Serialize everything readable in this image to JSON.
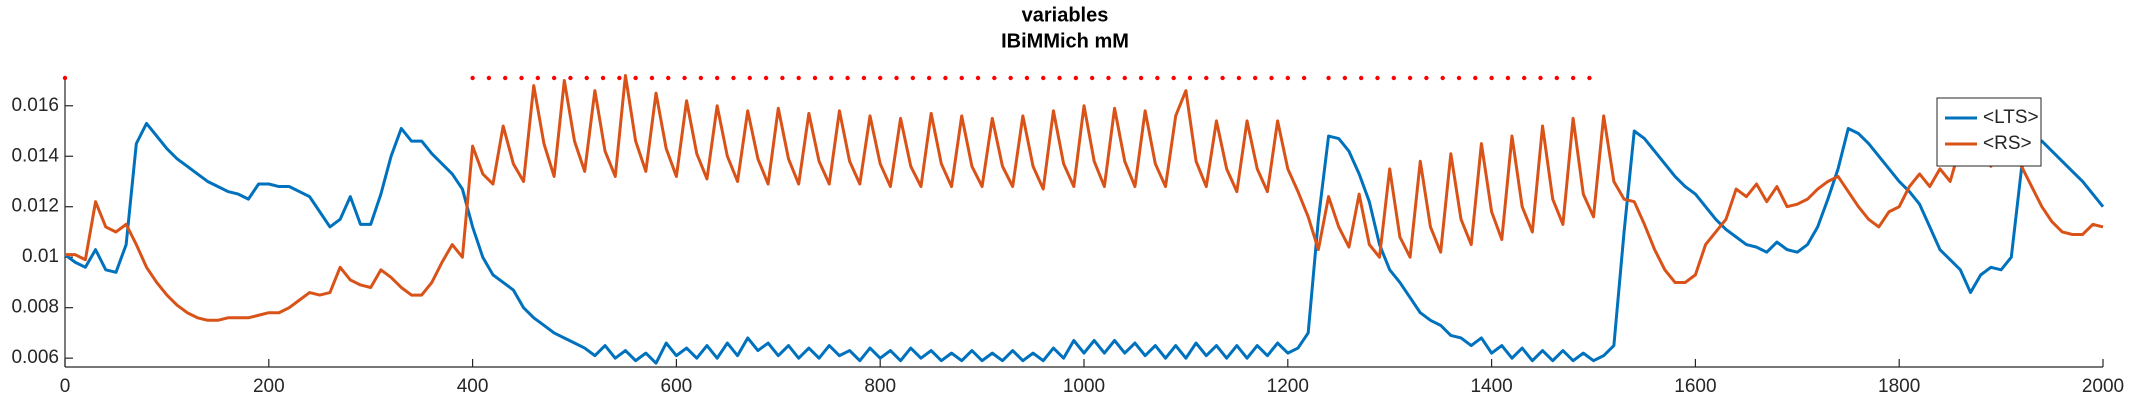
{
  "chart_data": {
    "type": "line",
    "title": "variables",
    "subtitle": "IBiMMich mM",
    "xlim": [
      0,
      2000
    ],
    "xticks": [
      0,
      200,
      400,
      600,
      800,
      1000,
      1200,
      1400,
      1600,
      1800,
      2000
    ],
    "ylim": [
      0.00565,
      0.0171
    ],
    "yticks": [
      0.006,
      0.008,
      0.01,
      0.012,
      0.014,
      0.016
    ],
    "grid": false,
    "legend": "northeast",
    "x": [
      0,
      10,
      20,
      30,
      40,
      50,
      60,
      70,
      80,
      90,
      100,
      110,
      120,
      130,
      140,
      150,
      160,
      170,
      180,
      190,
      200,
      210,
      220,
      230,
      240,
      250,
      260,
      270,
      280,
      290,
      300,
      310,
      320,
      330,
      340,
      350,
      360,
      370,
      380,
      390,
      400,
      410,
      420,
      430,
      440,
      450,
      460,
      470,
      480,
      490,
      500,
      510,
      520,
      530,
      540,
      550,
      560,
      570,
      580,
      590,
      600,
      610,
      620,
      630,
      640,
      650,
      660,
      670,
      680,
      690,
      700,
      710,
      720,
      730,
      740,
      750,
      760,
      770,
      780,
      790,
      800,
      810,
      820,
      830,
      840,
      850,
      860,
      870,
      880,
      890,
      900,
      910,
      920,
      930,
      940,
      950,
      960,
      970,
      980,
      990,
      1000,
      1010,
      1020,
      1030,
      1040,
      1050,
      1060,
      1070,
      1080,
      1090,
      1100,
      1110,
      1120,
      1130,
      1140,
      1150,
      1160,
      1170,
      1180,
      1190,
      1200,
      1210,
      1220,
      1230,
      1240,
      1250,
      1260,
      1270,
      1280,
      1290,
      1300,
      1310,
      1320,
      1330,
      1340,
      1350,
      1360,
      1370,
      1380,
      1390,
      1400,
      1410,
      1420,
      1430,
      1440,
      1450,
      1460,
      1470,
      1480,
      1490,
      1500,
      1510,
      1520,
      1530,
      1540,
      1550,
      1560,
      1570,
      1580,
      1590,
      1600,
      1610,
      1620,
      1630,
      1640,
      1650,
      1660,
      1670,
      1680,
      1690,
      1700,
      1710,
      1720,
      1730,
      1740,
      1750,
      1760,
      1770,
      1780,
      1790,
      1800,
      1810,
      1820,
      1830,
      1840,
      1850,
      1860,
      1870,
      1880,
      1890,
      1900,
      1910,
      1920,
      1930,
      1940,
      1950,
      1960,
      1970,
      1980,
      1990,
      2000
    ],
    "series": [
      {
        "name": "<LTS>",
        "color": "#0072bd",
        "values": [
          0.0101,
          0.0098,
          0.0096,
          0.0103,
          0.0095,
          0.0094,
          0.0105,
          0.0145,
          0.0153,
          0.0148,
          0.0143,
          0.0139,
          0.0136,
          0.0133,
          0.013,
          0.0128,
          0.0126,
          0.0125,
          0.0123,
          0.0129,
          0.0129,
          0.0128,
          0.0128,
          0.0126,
          0.0124,
          0.0118,
          0.0112,
          0.0115,
          0.0124,
          0.0113,
          0.0113,
          0.0125,
          0.014,
          0.0151,
          0.0146,
          0.0146,
          0.0141,
          0.0137,
          0.0133,
          0.0127,
          0.0112,
          0.01,
          0.0093,
          0.009,
          0.0087,
          0.008,
          0.0076,
          0.0073,
          0.007,
          0.0068,
          0.0066,
          0.0064,
          0.0061,
          0.0065,
          0.006,
          0.0063,
          0.0059,
          0.0062,
          0.0058,
          0.0066,
          0.0061,
          0.0064,
          0.006,
          0.0065,
          0.006,
          0.0066,
          0.0061,
          0.0068,
          0.0063,
          0.0066,
          0.0061,
          0.0065,
          0.006,
          0.0064,
          0.006,
          0.0065,
          0.0061,
          0.0063,
          0.0059,
          0.0064,
          0.006,
          0.0063,
          0.0059,
          0.0064,
          0.006,
          0.0063,
          0.0059,
          0.0062,
          0.0059,
          0.0063,
          0.0059,
          0.0062,
          0.0059,
          0.0063,
          0.0059,
          0.0062,
          0.0059,
          0.0064,
          0.006,
          0.0067,
          0.0062,
          0.0067,
          0.0062,
          0.0067,
          0.0062,
          0.0066,
          0.0061,
          0.0065,
          0.006,
          0.0065,
          0.006,
          0.0066,
          0.0061,
          0.0065,
          0.006,
          0.0065,
          0.006,
          0.0065,
          0.0061,
          0.0066,
          0.0062,
          0.0064,
          0.007,
          0.0115,
          0.0148,
          0.0147,
          0.0142,
          0.0133,
          0.0122,
          0.0105,
          0.0095,
          0.009,
          0.0084,
          0.0078,
          0.0075,
          0.0073,
          0.0069,
          0.0068,
          0.0065,
          0.0068,
          0.0062,
          0.0065,
          0.006,
          0.0064,
          0.0059,
          0.0063,
          0.0059,
          0.0063,
          0.0059,
          0.0062,
          0.0059,
          0.0061,
          0.0065,
          0.011,
          0.015,
          0.0147,
          0.0142,
          0.0137,
          0.0132,
          0.0128,
          0.0125,
          0.012,
          0.0115,
          0.0111,
          0.0108,
          0.0105,
          0.0104,
          0.0102,
          0.0106,
          0.0103,
          0.0102,
          0.0105,
          0.0112,
          0.0123,
          0.0135,
          0.0151,
          0.0149,
          0.0145,
          0.014,
          0.0135,
          0.013,
          0.0126,
          0.0121,
          0.0112,
          0.0103,
          0.0099,
          0.0095,
          0.0086,
          0.0093,
          0.0096,
          0.0095,
          0.01,
          0.0135,
          0.0147,
          0.0146,
          0.0142,
          0.0138,
          0.0134,
          0.013,
          0.0125,
          0.012
        ]
      },
      {
        "name": "<RS>",
        "color": "#d95319",
        "values": [
          0.0101,
          0.0101,
          0.0099,
          0.0122,
          0.0112,
          0.011,
          0.0113,
          0.0105,
          0.0096,
          0.009,
          0.0085,
          0.0081,
          0.0078,
          0.0076,
          0.0075,
          0.0075,
          0.0076,
          0.0076,
          0.0076,
          0.0077,
          0.0078,
          0.0078,
          0.008,
          0.0083,
          0.0086,
          0.0085,
          0.0086,
          0.0096,
          0.0091,
          0.0089,
          0.0088,
          0.0095,
          0.0092,
          0.0088,
          0.0085,
          0.0085,
          0.009,
          0.0098,
          0.0105,
          0.01,
          0.0144,
          0.0133,
          0.0129,
          0.0152,
          0.0137,
          0.013,
          0.0168,
          0.0145,
          0.0132,
          0.017,
          0.0146,
          0.0134,
          0.0166,
          0.0142,
          0.0132,
          0.0172,
          0.0146,
          0.0134,
          0.0165,
          0.0143,
          0.0132,
          0.0162,
          0.0141,
          0.0131,
          0.016,
          0.014,
          0.013,
          0.0158,
          0.0139,
          0.0129,
          0.0159,
          0.0139,
          0.0129,
          0.0157,
          0.0138,
          0.0129,
          0.0158,
          0.0138,
          0.0129,
          0.0156,
          0.0137,
          0.0128,
          0.0155,
          0.0136,
          0.0128,
          0.0157,
          0.0137,
          0.0128,
          0.0156,
          0.0136,
          0.0128,
          0.0155,
          0.0136,
          0.0128,
          0.0156,
          0.0136,
          0.0127,
          0.0158,
          0.0137,
          0.0128,
          0.016,
          0.0138,
          0.0128,
          0.0159,
          0.0138,
          0.0128,
          0.0158,
          0.0137,
          0.0128,
          0.0156,
          0.0166,
          0.0138,
          0.0128,
          0.0154,
          0.0135,
          0.0126,
          0.0154,
          0.0135,
          0.0126,
          0.0154,
          0.0135,
          0.0126,
          0.0116,
          0.0103,
          0.0124,
          0.0112,
          0.0104,
          0.0125,
          0.0105,
          0.01,
          0.0135,
          0.0108,
          0.01,
          0.0138,
          0.0112,
          0.0102,
          0.0141,
          0.0115,
          0.0105,
          0.0145,
          0.0118,
          0.0107,
          0.0148,
          0.012,
          0.011,
          0.0152,
          0.0123,
          0.0113,
          0.0155,
          0.0125,
          0.0116,
          0.0156,
          0.013,
          0.0123,
          0.0122,
          0.0113,
          0.0103,
          0.0095,
          0.009,
          0.009,
          0.0093,
          0.0105,
          0.011,
          0.0115,
          0.0127,
          0.0124,
          0.0129,
          0.0122,
          0.0128,
          0.012,
          0.0121,
          0.0123,
          0.0127,
          0.013,
          0.0132,
          0.0126,
          0.012,
          0.0115,
          0.0112,
          0.0118,
          0.012,
          0.0128,
          0.0133,
          0.0128,
          0.0135,
          0.013,
          0.0144,
          0.0138,
          0.0144,
          0.0136,
          0.0145,
          0.014,
          0.0136,
          0.0128,
          0.012,
          0.0114,
          0.011,
          0.0109,
          0.0109,
          0.0113,
          0.0112
        ]
      }
    ],
    "events": {
      "color": "#ff0000",
      "y": 0.0171,
      "x": [
        0,
        400,
        416,
        432,
        448,
        464,
        480,
        496,
        512,
        528,
        544,
        560,
        576,
        592,
        608,
        624,
        640,
        656,
        672,
        688,
        704,
        720,
        736,
        752,
        768,
        784,
        800,
        816,
        832,
        848,
        864,
        880,
        896,
        912,
        928,
        944,
        960,
        976,
        992,
        1008,
        1024,
        1040,
        1056,
        1072,
        1088,
        1104,
        1120,
        1136,
        1152,
        1168,
        1184,
        1200,
        1216,
        1240,
        1256,
        1272,
        1288,
        1304,
        1320,
        1336,
        1352,
        1368,
        1384,
        1400,
        1416,
        1432,
        1448,
        1464,
        1480,
        1496
      ]
    }
  }
}
